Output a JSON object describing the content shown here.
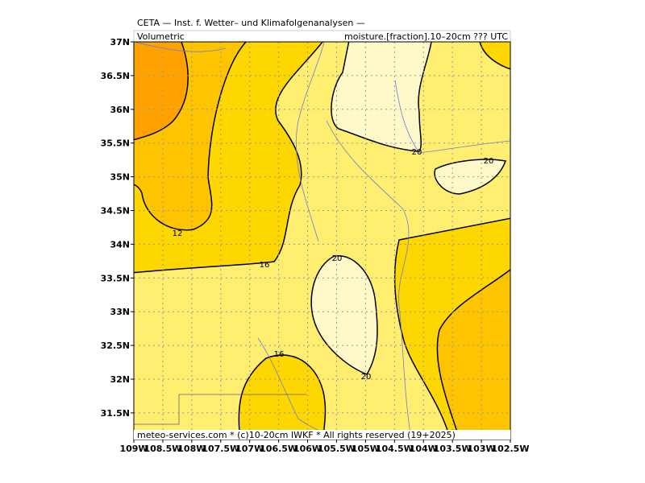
{
  "header": {
    "line1": "CETA — Inst. f. Wetter– und Klimafolgenanalysen —",
    "left": "Volumetric",
    "right": "moisture.[fraction].10–20cm ??? UTC"
  },
  "map": {
    "xticks": [
      "109W",
      "108.5W",
      "108W",
      "107.5W",
      "107W",
      "106.5W",
      "106W",
      "105.5W",
      "105W",
      "104.5W",
      "104W",
      "103.5W",
      "103W",
      "102.5W"
    ],
    "yticks": [
      "37N",
      "36.5N",
      "36N",
      "35.5N",
      "35N",
      "34.5N",
      "34N",
      "33.5N",
      "33N",
      "32.5N",
      "32N",
      "31.5N"
    ],
    "contour_labels": [
      12,
      16,
      16,
      20,
      20,
      20,
      20
    ],
    "footer": "meteo-services.com * (c)10-20cm IWKF * All rights reserved (19+2025)"
  }
}
